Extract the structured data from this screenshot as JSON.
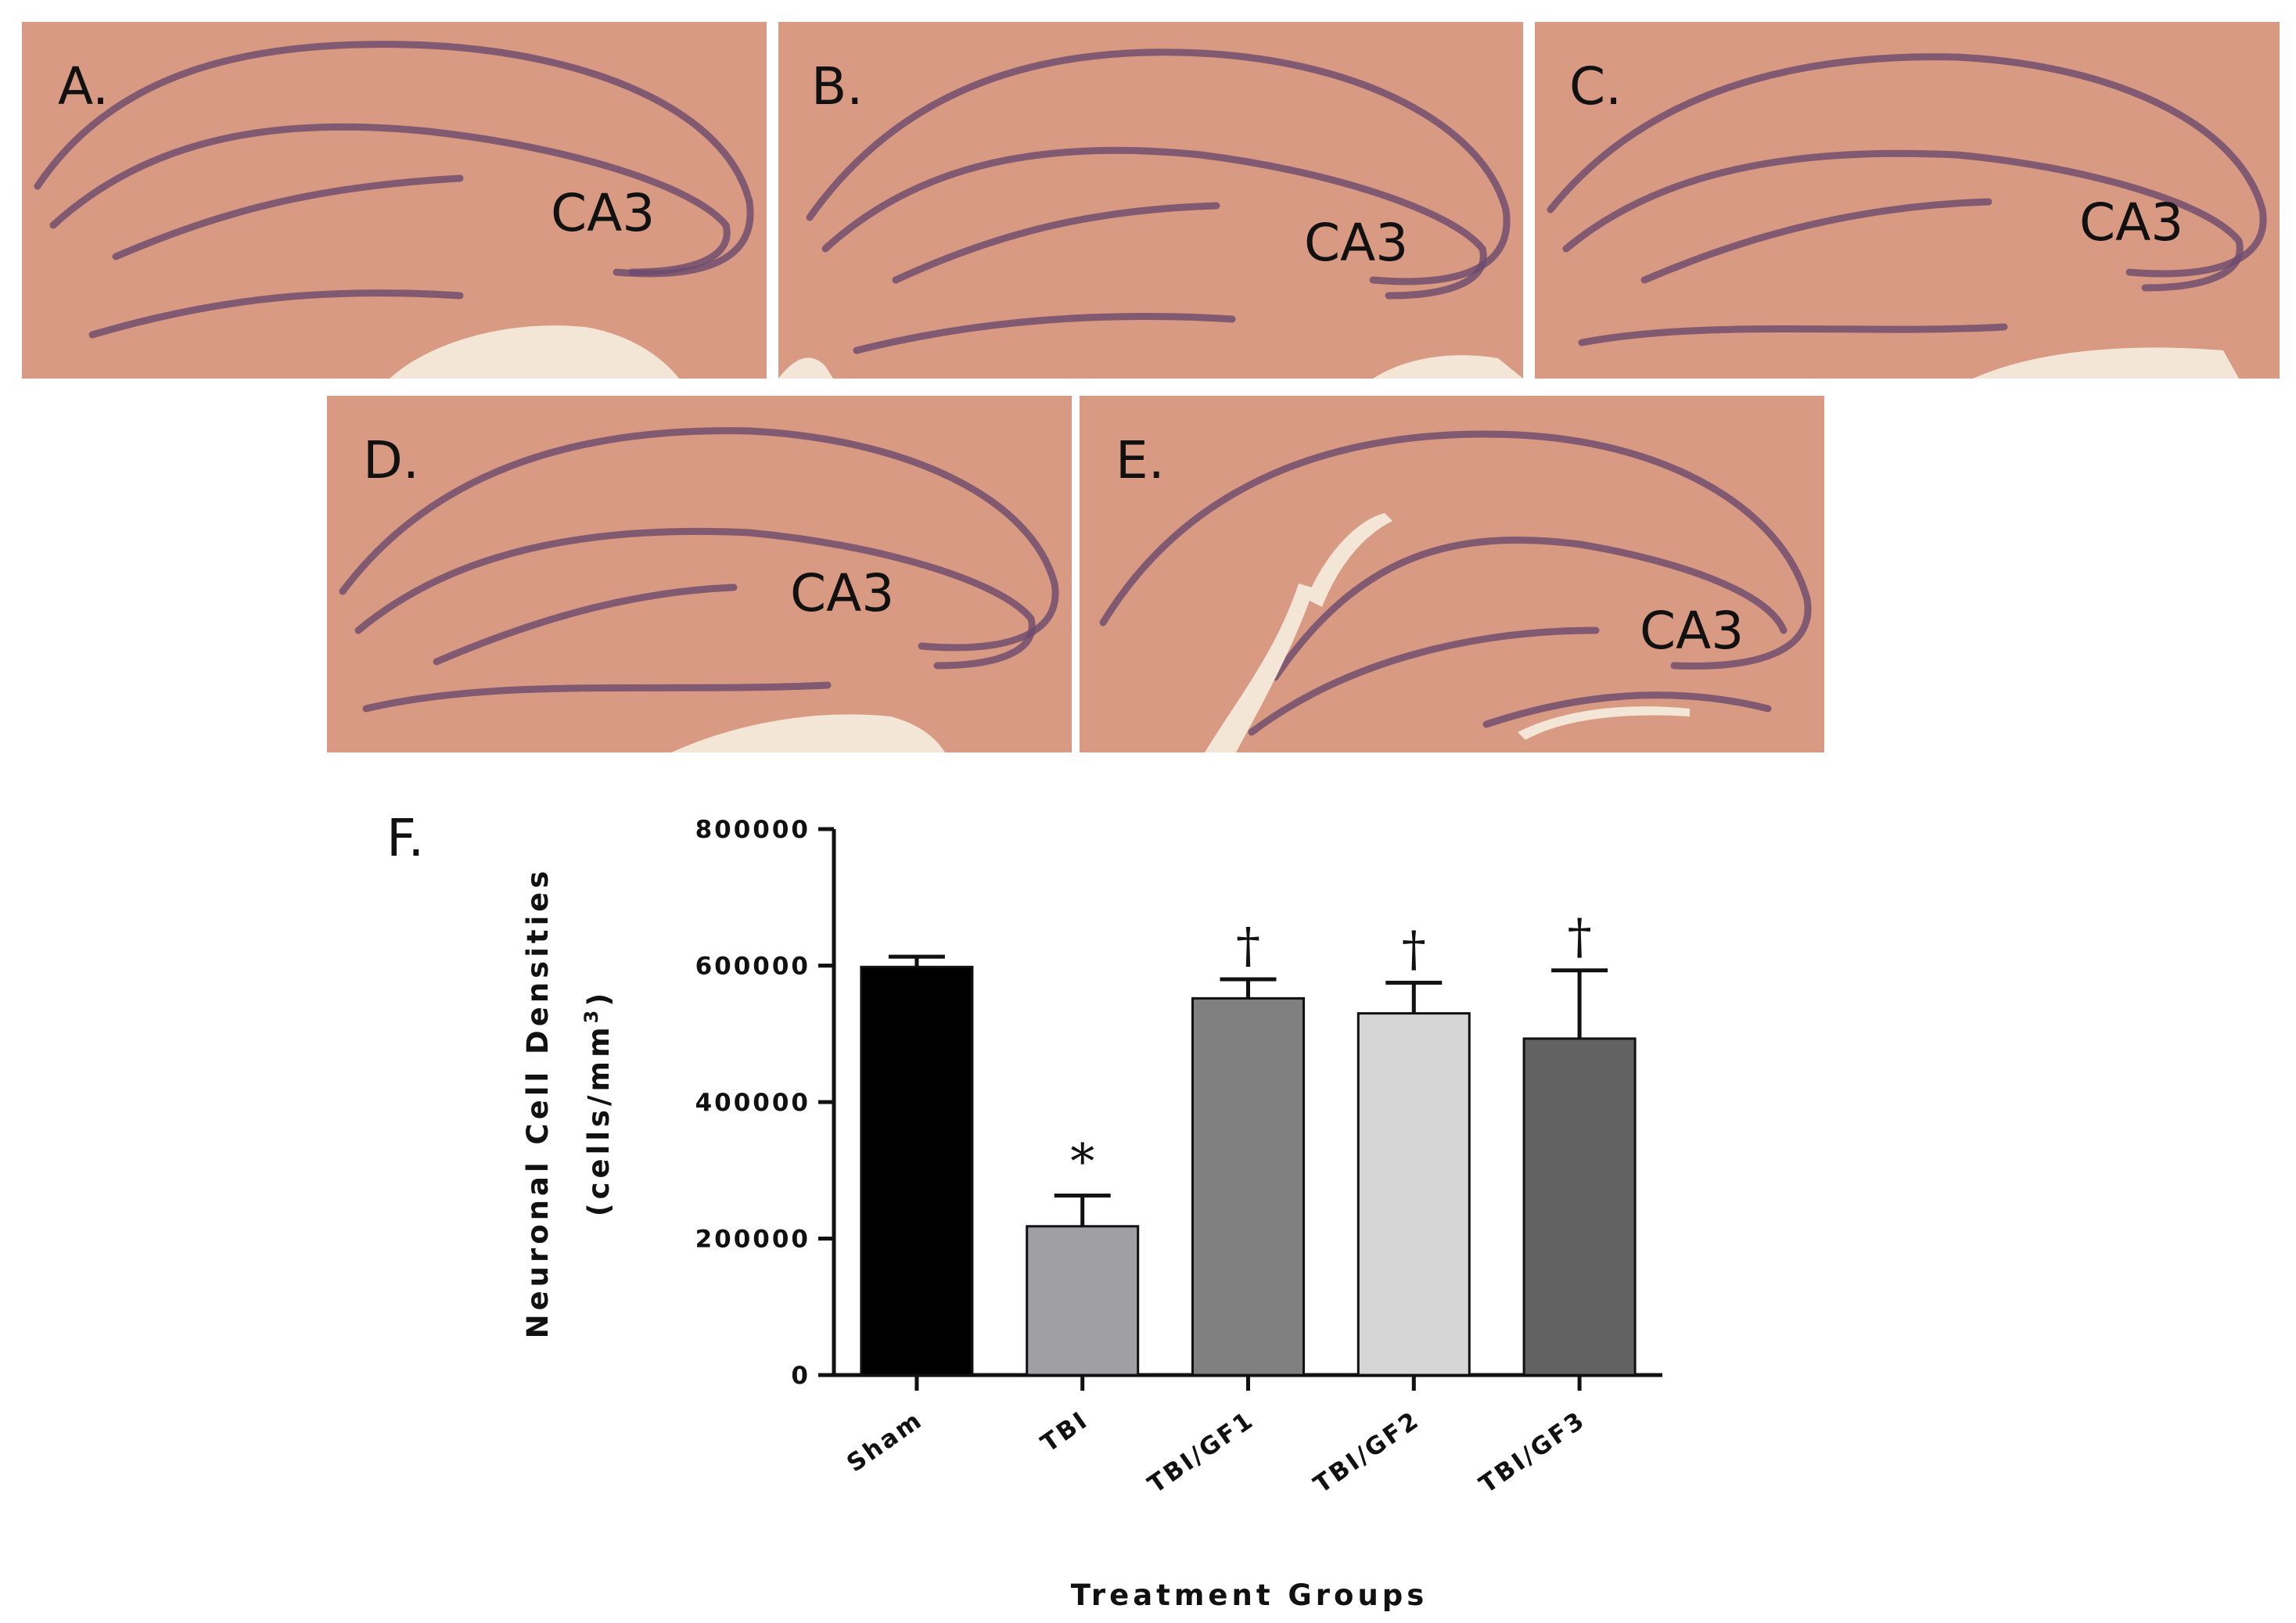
{
  "panels": [
    {
      "letter": "A.",
      "region": "CA3"
    },
    {
      "letter": "B.",
      "region": "CA3"
    },
    {
      "letter": "C.",
      "region": "CA3"
    },
    {
      "letter": "D.",
      "region": "CA3"
    },
    {
      "letter": "E.",
      "region": "CA3"
    }
  ],
  "tissue_colors": {
    "background": "#d89a82",
    "cell_layer": "#6b4a6e",
    "gap": "#f3e6d6"
  },
  "chart_data": {
    "type": "bar",
    "panel_letter": "F.",
    "categories": [
      "Sham",
      "TBI",
      "TBI/GF1",
      "TBI/GF2",
      "TBI/GF3"
    ],
    "values": [
      598000,
      218000,
      552000,
      530000,
      493000
    ],
    "errors": [
      15000,
      45000,
      28000,
      45000,
      100000
    ],
    "colors": [
      "#000000",
      "#a0a0a4",
      "#808080",
      "#d5d5d5",
      "#626262"
    ],
    "significance": [
      "",
      "*",
      "†",
      "†",
      "†"
    ],
    "ylim": [
      0,
      800000
    ],
    "yticks": [
      "0",
      "200000",
      "400000",
      "600000",
      "800000"
    ],
    "ylabel_line1": "Neuronal Cell Densities",
    "ylabel_line2": "(cells/mm",
    "ylabel_sup": "3",
    "ylabel_end": ")",
    "xlabel": "Treatment Groups",
    "grid": false
  }
}
